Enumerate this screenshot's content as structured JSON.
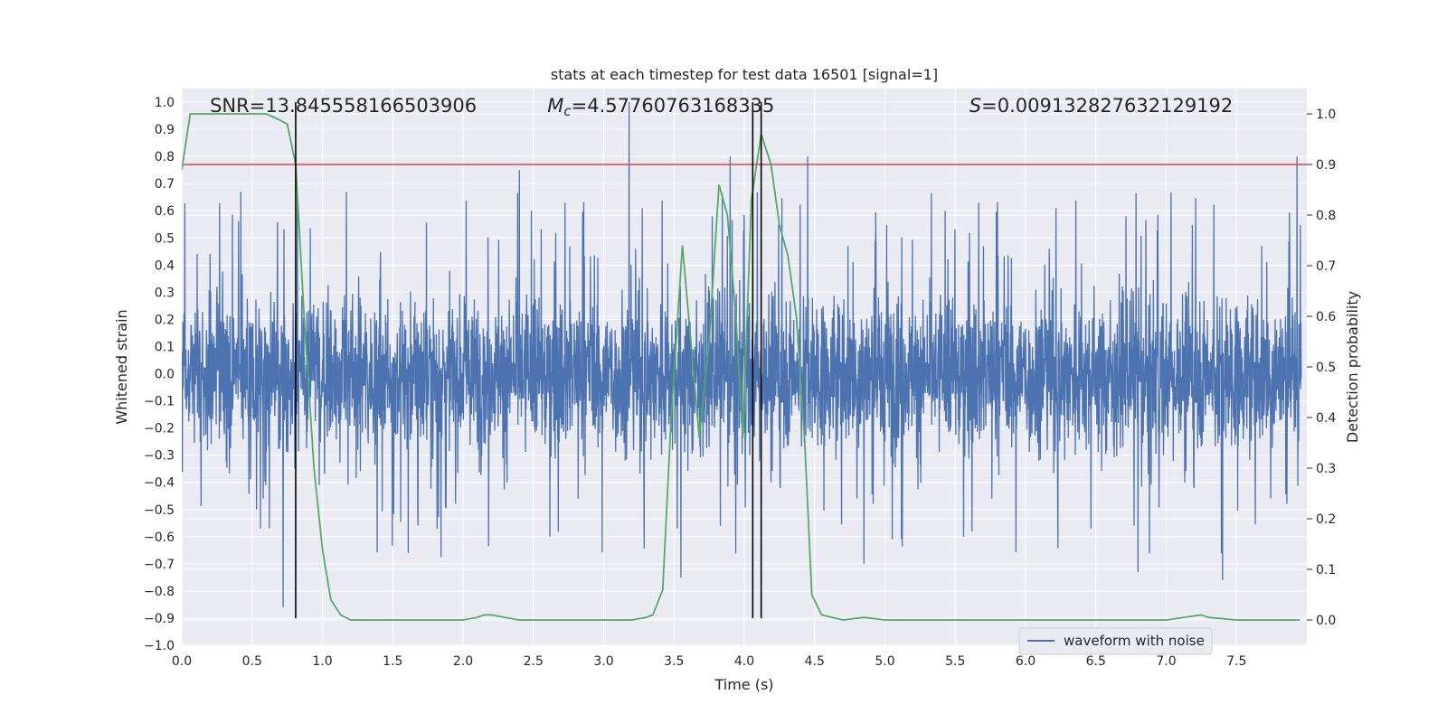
{
  "chart_data": {
    "type": "line",
    "title": "stats at each timestep for test data 16501 [signal=1]",
    "xlabel": "Time (s)",
    "ylabel": "Whitened strain",
    "y2label": "Detection probability",
    "xlim": [
      0.0,
      8.0
    ],
    "ylim": [
      -1.0,
      1.05
    ],
    "y2lim": [
      -0.05,
      1.05
    ],
    "xticks": [
      0.0,
      0.5,
      1.0,
      1.5,
      2.0,
      2.5,
      3.0,
      3.5,
      4.0,
      4.5,
      5.0,
      5.5,
      6.0,
      6.5,
      7.0,
      7.5
    ],
    "xtick_labels": [
      "0.0",
      "0.5",
      "1.0",
      "1.5",
      "2.0",
      "2.5",
      "3.0",
      "3.5",
      "4.0",
      "4.5",
      "5.0",
      "5.5",
      "6.0",
      "6.5",
      "7.0",
      "7.5"
    ],
    "yticks": [
      -1.0,
      -0.9,
      -0.8,
      -0.7,
      -0.6,
      -0.5,
      -0.4,
      -0.3,
      -0.2,
      -0.1,
      0.0,
      0.1,
      0.2,
      0.3,
      0.4,
      0.5,
      0.6,
      0.7,
      0.8,
      0.9,
      1.0
    ],
    "ytick_labels": [
      "−1.0",
      "−0.9",
      "−0.8",
      "−0.7",
      "−0.6",
      "−0.5",
      "−0.4",
      "−0.3",
      "−0.2",
      "−0.1",
      "0.0",
      "0.1",
      "0.2",
      "0.3",
      "0.4",
      "0.5",
      "0.6",
      "0.7",
      "0.8",
      "0.9",
      "1.0"
    ],
    "y2ticks": [
      0.0,
      0.1,
      0.2,
      0.3,
      0.4,
      0.5,
      0.6,
      0.7,
      0.8,
      0.9,
      1.0
    ],
    "y2tick_labels": [
      "0.0",
      "0.1",
      "0.2",
      "0.3",
      "0.4",
      "0.5",
      "0.6",
      "0.7",
      "0.8",
      "0.9",
      "1.0"
    ],
    "grid": true,
    "legend_position": "lower-right",
    "annotations": [
      {
        "prefix": "SNR=",
        "value": "13.845558166503906",
        "x": 0.2
      },
      {
        "symbol": "M",
        "subscript": "c",
        "value": "=4.57760763168335",
        "x": 2.6
      },
      {
        "symbol": "S",
        "value": "=0.009132827632129192",
        "x": 5.6
      }
    ],
    "threshold": {
      "axis": "y2",
      "value": 0.9,
      "color": "#c44e52"
    },
    "vlines": [
      {
        "x": 0.81,
        "ymin": -0.9,
        "ymax": 1.0
      },
      {
        "x": 4.06,
        "ymin": -0.9,
        "ymax": 1.0
      },
      {
        "x": 4.12,
        "ymin": -0.9,
        "ymax": 1.0
      }
    ],
    "series": [
      {
        "name": "waveform with noise",
        "color": "#4c72b0",
        "axis": "y",
        "style": "dense-noise",
        "t_start": 0.0,
        "t_end": 7.96,
        "amplitude_core": 0.22,
        "spike_peaks": [
          {
            "x": 0.42,
            "y": 0.67
          },
          {
            "x": 0.72,
            "y": -0.86
          },
          {
            "x": 1.17,
            "y": 0.67
          },
          {
            "x": 2.4,
            "y": 0.75
          },
          {
            "x": 2.4,
            "y": -0.72
          },
          {
            "x": 3.18,
            "y": 1.0
          },
          {
            "x": 3.55,
            "y": -0.75
          },
          {
            "x": 3.9,
            "y": 0.8
          },
          {
            "x": 4.45,
            "y": 0.8
          },
          {
            "x": 4.85,
            "y": -0.7
          },
          {
            "x": 6.8,
            "y": -0.73
          },
          {
            "x": 7.4,
            "y": -0.76
          },
          {
            "x": 7.93,
            "y": 0.8
          }
        ]
      },
      {
        "name": "",
        "color": "#55a868",
        "axis": "y2",
        "x": [
          0.0,
          0.06,
          0.12,
          0.2,
          0.3,
          0.4,
          0.5,
          0.6,
          0.68,
          0.75,
          0.81,
          0.87,
          0.94,
          1.0,
          1.06,
          1.13,
          1.2,
          1.3,
          1.4,
          1.5,
          1.6,
          1.7,
          1.8,
          1.9,
          2.0,
          2.1,
          2.15,
          2.2,
          2.3,
          2.4,
          2.5,
          2.6,
          2.7,
          2.8,
          2.9,
          3.0,
          3.1,
          3.2,
          3.3,
          3.35,
          3.42,
          3.48,
          3.56,
          3.62,
          3.68,
          3.75,
          3.82,
          3.88,
          3.94,
          3.99,
          4.05,
          4.12,
          4.19,
          4.25,
          4.31,
          4.37,
          4.43,
          4.48,
          4.55,
          4.7,
          4.85,
          5.0,
          5.5,
          6.0,
          6.5,
          7.0,
          7.25,
          7.3,
          7.5,
          7.95
        ],
        "y": [
          0.89,
          1.0,
          1.0,
          1.0,
          1.0,
          1.0,
          1.0,
          1.0,
          0.99,
          0.98,
          0.9,
          0.6,
          0.3,
          0.14,
          0.04,
          0.01,
          0.0,
          0.0,
          0.0,
          0.0,
          0.0,
          0.0,
          0.0,
          0.0,
          0.0,
          0.005,
          0.01,
          0.01,
          0.005,
          0.0,
          0.0,
          0.0,
          0.0,
          0.0,
          0.0,
          0.0,
          0.0,
          0.0,
          0.005,
          0.01,
          0.06,
          0.4,
          0.74,
          0.55,
          0.36,
          0.55,
          0.86,
          0.8,
          0.6,
          0.36,
          0.83,
          0.96,
          0.9,
          0.78,
          0.72,
          0.6,
          0.35,
          0.05,
          0.01,
          0.0,
          0.005,
          0.0,
          0.0,
          0.0,
          0.0,
          0.0,
          0.01,
          0.005,
          0.0,
          0.0
        ]
      }
    ]
  }
}
